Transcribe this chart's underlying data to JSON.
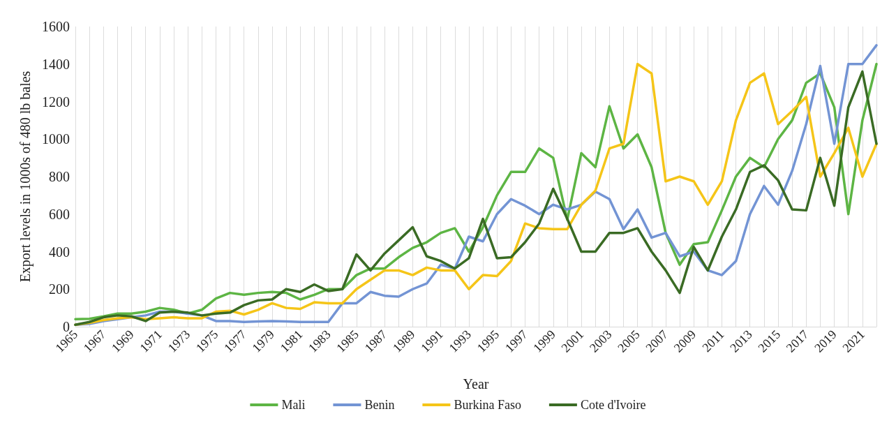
{
  "chart_data": {
    "type": "line",
    "xlabel": "Year",
    "ylabel": "Export levels in 1000s of 480 lb bales",
    "categories": [
      "1965",
      null,
      "1967",
      null,
      "1969",
      null,
      "1971",
      null,
      "1973",
      null,
      "1975",
      null,
      "1977",
      null,
      "1979",
      null,
      "1981",
      null,
      "1983",
      null,
      "1985",
      null,
      "1987",
      null,
      "1989",
      null,
      "1991",
      null,
      "1993",
      null,
      "1995",
      null,
      "1997",
      null,
      "1999",
      null,
      "2001",
      null,
      "2003",
      null,
      "2005",
      null,
      "2007",
      null,
      "2009",
      null,
      "2011",
      null,
      "2013",
      null,
      "2015",
      null,
      "2017",
      null,
      "2019",
      null,
      "2021",
      null
    ],
    "ylim": [
      0,
      1600
    ],
    "yticks": [
      0,
      200,
      400,
      600,
      800,
      1000,
      1200,
      1400,
      1600
    ],
    "grid": "x",
    "legend": "bottom",
    "marker": "none",
    "line_style": "solid",
    "series": [
      {
        "name": "Mali",
        "color": "#5db544",
        "values": [
          40,
          42,
          55,
          70,
          70,
          80,
          100,
          90,
          70,
          90,
          150,
          180,
          170,
          180,
          185,
          180,
          145,
          170,
          200,
          200,
          275,
          310,
          310,
          370,
          420,
          450,
          500,
          525,
          400,
          530,
          700,
          825,
          825,
          950,
          900,
          570,
          925,
          850,
          1175,
          950,
          1025,
          850,
          500,
          330,
          440,
          450,
          620,
          800,
          900,
          850,
          1000,
          1100,
          1300,
          1350,
          1170,
          600,
          1100,
          1400
        ]
      },
      {
        "name": "Benin",
        "color": "#7394d4",
        "values": [
          10,
          15,
          30,
          40,
          50,
          60,
          80,
          80,
          70,
          60,
          30,
          30,
          25,
          28,
          30,
          28,
          25,
          25,
          25,
          125,
          125,
          185,
          165,
          160,
          200,
          230,
          330,
          310,
          480,
          455,
          600,
          680,
          645,
          600,
          650,
          625,
          650,
          720,
          680,
          520,
          625,
          475,
          500,
          375,
          400,
          300,
          275,
          350,
          600,
          750,
          650,
          830,
          1080,
          1390,
          975,
          1400,
          1400,
          1500
        ]
      },
      {
        "name": "Burkina Faso",
        "color": "#f5c518",
        "values": [
          10,
          20,
          35,
          45,
          50,
          40,
          45,
          50,
          45,
          45,
          80,
          85,
          65,
          90,
          125,
          100,
          95,
          130,
          125,
          125,
          200,
          250,
          300,
          300,
          275,
          315,
          300,
          300,
          200,
          275,
          270,
          350,
          550,
          525,
          520,
          520,
          650,
          725,
          950,
          975,
          1400,
          1350,
          775,
          800,
          775,
          650,
          775,
          1100,
          1300,
          1350,
          1080,
          1150,
          1225,
          800,
          925,
          1060,
          800,
          975
        ]
      },
      {
        "name": "Cote d'Ivoire",
        "color": "#3a6b24",
        "values": [
          10,
          25,
          50,
          60,
          55,
          30,
          75,
          80,
          75,
          60,
          70,
          75,
          115,
          140,
          145,
          200,
          185,
          225,
          190,
          200,
          385,
          300,
          390,
          460,
          530,
          375,
          350,
          310,
          365,
          575,
          365,
          370,
          450,
          550,
          735,
          575,
          400,
          400,
          500,
          500,
          525,
          400,
          300,
          180,
          425,
          300,
          480,
          625,
          825,
          860,
          780,
          625,
          620,
          900,
          645,
          1170,
          1360,
          975
        ]
      }
    ]
  }
}
